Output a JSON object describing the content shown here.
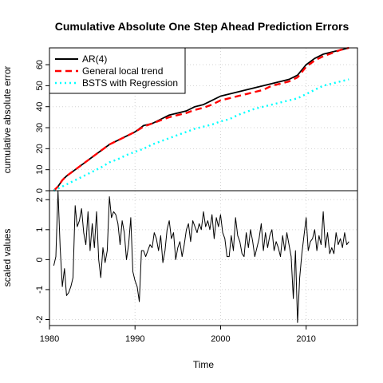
{
  "title": "Cumulative Absolute One Step Ahead Prediction Errors",
  "chart_data": [
    {
      "type": "line",
      "panel": "top",
      "ylabel": "cumulative absolute error",
      "xlabel": "",
      "xlim": [
        1980,
        2016
      ],
      "ylim": [
        0,
        68
      ],
      "yticks": [
        0,
        10,
        20,
        30,
        40,
        50,
        60
      ],
      "grid": true,
      "legend_position": "top-left",
      "series": [
        {
          "name": "AR(4)",
          "color": "#000000",
          "style": "solid",
          "x": [
            1980.5,
            1981,
            1981.5,
            1982,
            1983,
            1984,
            1985,
            1986,
            1987,
            1988,
            1989,
            1990,
            1991,
            1992,
            1993,
            1994,
            1995,
            1996,
            1997,
            1998,
            1999,
            2000,
            2001,
            2002,
            2003,
            2004,
            2005,
            2006,
            2007,
            2008,
            2009,
            2010,
            2011,
            2012,
            2013,
            2014,
            2015
          ],
          "values": [
            0,
            2,
            5,
            7,
            10,
            13,
            16,
            19,
            22,
            24,
            26,
            28,
            31,
            32,
            34,
            36,
            37,
            38,
            40,
            41,
            43,
            45,
            46,
            47,
            48,
            49,
            50,
            51,
            52,
            53,
            55,
            60,
            63,
            65,
            66,
            67,
            68
          ]
        },
        {
          "name": "General local trend",
          "color": "#ff0000",
          "style": "dashed",
          "x": [
            1980.5,
            1981,
            1981.5,
            1982,
            1983,
            1984,
            1985,
            1986,
            1987,
            1988,
            1989,
            1990,
            1991,
            1992,
            1993,
            1994,
            1995,
            1996,
            1997,
            1998,
            1999,
            2000,
            2001,
            2002,
            2003,
            2004,
            2005,
            2006,
            2007,
            2008,
            2009,
            2010,
            2011,
            2012,
            2013,
            2014,
            2015
          ],
          "values": [
            0,
            2,
            5,
            7,
            10,
            13,
            16,
            19,
            22,
            24,
            26,
            28,
            30.5,
            32,
            33.5,
            35,
            36,
            37,
            38.5,
            39.5,
            41,
            43,
            44,
            45,
            46,
            47,
            48,
            50,
            51,
            52,
            54,
            59,
            62,
            64,
            65.5,
            67,
            68
          ]
        },
        {
          "name": "BSTS with Regression",
          "color": "#00ffff",
          "style": "dotted",
          "x": [
            1980.5,
            1981,
            1982,
            1983,
            1984,
            1985,
            1986,
            1987,
            1988,
            1989,
            1990,
            1991,
            1992,
            1993,
            1994,
            1995,
            1996,
            1997,
            1998,
            1999,
            2000,
            2001,
            2002,
            2003,
            2004,
            2005,
            2006,
            2007,
            2008,
            2009,
            2010,
            2011,
            2012,
            2013,
            2014,
            2015
          ],
          "values": [
            0,
            1,
            3,
            5,
            7,
            9,
            11,
            13.5,
            15,
            17,
            18.5,
            20,
            22,
            23.5,
            25,
            26.5,
            28,
            29.5,
            30.5,
            31.5,
            33,
            34,
            36,
            37.5,
            39,
            40,
            41,
            42,
            43,
            44,
            46,
            48,
            50,
            51,
            52,
            53
          ]
        }
      ]
    },
    {
      "type": "line",
      "panel": "bottom",
      "ylabel": "scaled values",
      "xlabel": "Time",
      "xlim": [
        1980,
        2016
      ],
      "ylim": [
        -2.2,
        2.3
      ],
      "yticks": [
        -2,
        -1,
        0,
        1,
        2
      ],
      "xticks": [
        1980,
        1990,
        2000,
        2010
      ],
      "grid": true,
      "series": [
        {
          "name": "",
          "color": "#000000",
          "style": "solid",
          "x": [
            1980.5,
            1980.75,
            1981.0,
            1981.25,
            1981.5,
            1981.75,
            1982.0,
            1982.25,
            1982.5,
            1982.75,
            1983.0,
            1983.25,
            1983.5,
            1983.75,
            1984.0,
            1984.25,
            1984.5,
            1984.75,
            1985.0,
            1985.25,
            1985.5,
            1985.75,
            1986.0,
            1986.25,
            1986.5,
            1986.75,
            1987.0,
            1987.25,
            1987.5,
            1987.75,
            1988.0,
            1988.25,
            1988.5,
            1988.75,
            1989.0,
            1989.25,
            1989.5,
            1989.75,
            1990.0,
            1990.25,
            1990.5,
            1990.75,
            1991.0,
            1991.25,
            1991.5,
            1991.75,
            1992.0,
            1992.25,
            1992.5,
            1992.75,
            1993.0,
            1993.25,
            1993.5,
            1993.75,
            1994.0,
            1994.25,
            1994.5,
            1994.75,
            1995.0,
            1995.25,
            1995.5,
            1995.75,
            1996.0,
            1996.25,
            1996.5,
            1996.75,
            1997.0,
            1997.25,
            1997.5,
            1997.75,
            1998.0,
            1998.25,
            1998.5,
            1998.75,
            1999.0,
            1999.25,
            1999.5,
            1999.75,
            2000.0,
            2000.25,
            2000.5,
            2000.75,
            2001.0,
            2001.25,
            2001.5,
            2001.75,
            2002.0,
            2002.25,
            2002.5,
            2002.75,
            2003.0,
            2003.25,
            2003.5,
            2003.75,
            2004.0,
            2004.25,
            2004.5,
            2004.75,
            2005.0,
            2005.25,
            2005.5,
            2005.75,
            2006.0,
            2006.25,
            2006.5,
            2006.75,
            2007.0,
            2007.25,
            2007.5,
            2007.75,
            2008.0,
            2008.25,
            2008.5,
            2008.75,
            2009.0,
            2009.25,
            2009.5,
            2009.75,
            2010.0,
            2010.25,
            2010.5,
            2010.75,
            2011.0,
            2011.25,
            2011.5,
            2011.75,
            2012.0,
            2012.25,
            2012.5,
            2012.75,
            2013.0,
            2013.25,
            2013.5,
            2013.75,
            2014.0,
            2014.25,
            2014.5,
            2014.75,
            2015.0
          ],
          "values": [
            -0.2,
            0.1,
            2.3,
            0.4,
            -0.9,
            -0.3,
            -1.2,
            -1.1,
            -0.9,
            -0.6,
            1.8,
            1.1,
            1.3,
            1.7,
            0.9,
            0.5,
            1.6,
            0.3,
            1.2,
            0.4,
            1.6,
            0.0,
            -0.6,
            0.4,
            -0.1,
            0.3,
            2.1,
            1.4,
            1.6,
            1.5,
            1.2,
            0.5,
            1.3,
            0.9,
            0.0,
            0.5,
            1.4,
            -0.4,
            -0.7,
            -0.9,
            -1.4,
            0.3,
            0.3,
            0.1,
            0.3,
            0.5,
            0.4,
            0.9,
            0.7,
            0.3,
            0.8,
            -0.1,
            0.3,
            1.0,
            1.3,
            0.7,
            0.9,
            0.0,
            0.4,
            0.6,
            0.1,
            0.5,
            1.0,
            1.2,
            0.6,
            1.3,
            1.1,
            0.9,
            1.2,
            1.0,
            1.6,
            1.1,
            1.3,
            1.0,
            1.5,
            0.7,
            1.4,
            1.1,
            1.5,
            0.9,
            0.7,
            0.1,
            0.1,
            0.8,
            0.3,
            1.4,
            0.8,
            0.6,
            0.2,
            0.1,
            0.9,
            0.4,
            1.0,
            0.6,
            0.1,
            0.4,
            0.7,
            1.2,
            0.3,
            0.9,
            0.4,
            0.8,
            1.0,
            0.3,
            0.6,
            0.4,
            0.1,
            0.8,
            0.3,
            0.9,
            0.5,
            0.1,
            -1.3,
            0.3,
            -2.1,
            -0.6,
            0.2,
            0.8,
            1.4,
            0.3,
            0.6,
            0.7,
            1.0,
            0.3,
            0.8,
            0.5,
            1.6,
            0.4,
            0.9,
            0.2,
            0.4,
            0.2,
            0.9,
            0.5,
            0.7,
            0.4,
            0.9,
            0.5,
            0.6
          ]
        }
      ]
    }
  ]
}
